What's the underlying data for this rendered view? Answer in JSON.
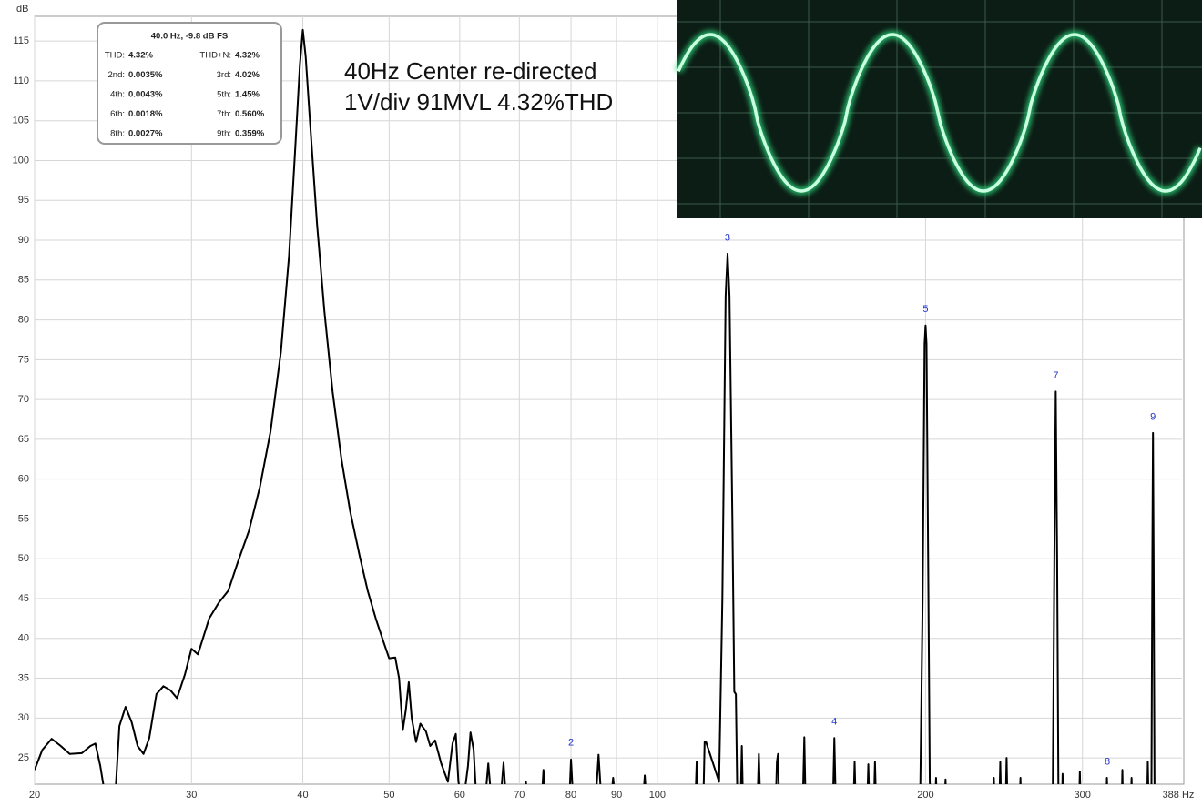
{
  "chart_data": {
    "type": "line",
    "y_label": "dB",
    "xlim": [
      20,
      388
    ],
    "ylim": [
      21.7,
      118.1
    ],
    "log_x": true,
    "grid": true,
    "xticks": [
      20,
      30,
      40,
      50,
      60,
      70,
      80,
      90,
      100,
      200,
      300,
      {
        "value": 388,
        "label": "388 Hz"
      }
    ],
    "yticks": [
      25,
      30,
      35,
      40,
      45,
      50,
      55,
      60,
      65,
      70,
      75,
      80,
      85,
      90,
      95,
      100,
      105,
      110,
      115
    ],
    "x": [
      20,
      20.4,
      20.9,
      21.4,
      21.9,
      22.6,
      23.1,
      23.4,
      23.7,
      24.1,
      24.6,
      24.9,
      25.3,
      25.7,
      26.1,
      26.5,
      26.9,
      27.4,
      27.9,
      28.4,
      28.9,
      29.5,
      30,
      30.5,
      30.8,
      31.4,
      32.2,
      33,
      33.8,
      34.8,
      35.8,
      36.8,
      37.8,
      38.6,
      39.2,
      39.7,
      40,
      40.3,
      40.8,
      41.5,
      42.3,
      43.2,
      44.2,
      45.2,
      46.3,
      47.3,
      48.3,
      49.3,
      50,
      50.8,
      51.3,
      51.8,
      52.2,
      52.6,
      53,
      53.6,
      54.2,
      55,
      55.6,
      56.3,
      57.2,
      58.2,
      58.9,
      59.4,
      59.8,
      60.5,
      61.3,
      61.7,
      62.2,
      62.7,
      64,
      64.6,
      65.2,
      66.6,
      67.2,
      67.7,
      70.8,
      71.2,
      71.6,
      74.1,
      74.5,
      74.9,
      79.6,
      80,
      80.5,
      85.2,
      85.9,
      86.6,
      88.6,
      89.2,
      89.8,
      96.3,
      96.8,
      97.3,
      110.3,
      110.7,
      111.1,
      112.6,
      113,
      113.4,
      117.3,
      118.3,
      119.3,
      119.9,
      120.5,
      121.4,
      122,
      122.5,
      123,
      124,
      124.4,
      124.8,
      129.5,
      130,
      130.5,
      135.8,
      136.2,
      136.6,
      137,
      145.6,
      146.2,
      146.7,
      157.4,
      158,
      158.6,
      166,
      166.5,
      167,
      172,
      172.5,
      173,
      175,
      175.5,
      176,
      186,
      186.8,
      197.2,
      198.5,
      199.5,
      200,
      200.5,
      201.5,
      202.2,
      202.8,
      205,
      205.5,
      206,
      210,
      210.6,
      211,
      238,
      238.6,
      239.2,
      242,
      242.6,
      243.2,
      246,
      246.6,
      247.2,
      255,
      255.6,
      256,
      277.8,
      279,
      280,
      281,
      282,
      284.5,
      285,
      285.5,
      297.4,
      298,
      298.6,
      319,
      319.6,
      320.2,
      332,
      332.6,
      333.2,
      340,
      340.6,
      341.2,
      354.5,
      355.2,
      356,
      358.5,
      359.4,
      360,
      360.6,
      361.5,
      388
    ],
    "series": [
      {
        "name": "Spectrum",
        "color": "#000000",
        "values": [
          23.5,
          26,
          27.4,
          26.5,
          25.5,
          25.6,
          26.5,
          26.8,
          24,
          19,
          19,
          29,
          31.4,
          29.5,
          26.5,
          25.5,
          27.5,
          33,
          34,
          33.5,
          32.5,
          35.5,
          38.7,
          38,
          39.5,
          42.5,
          44.5,
          46,
          49.5,
          53.5,
          59,
          66,
          76,
          88,
          101,
          112,
          116.4,
          113,
          104,
          92,
          81,
          71,
          62.5,
          56,
          50.5,
          46,
          42.5,
          39.5,
          37.5,
          37.6,
          35,
          28.5,
          31,
          34.5,
          30,
          27,
          29.3,
          28.3,
          26.5,
          27.2,
          24.3,
          22,
          26.8,
          28,
          22,
          19,
          24,
          28.2,
          26,
          19,
          19,
          24.3,
          19,
          19,
          24.4,
          19,
          19,
          22,
          19,
          19,
          23.5,
          19,
          19,
          24.8,
          19,
          19,
          25.4,
          19,
          19,
          22.5,
          19,
          19,
          22.8,
          19,
          19,
          24.5,
          19,
          19,
          27,
          27,
          22,
          45,
          83,
          88.3,
          83,
          55,
          33.3,
          33,
          19,
          19,
          26.5,
          19,
          19,
          25.5,
          19,
          19,
          24.5,
          25.5,
          19,
          19,
          27.6,
          19,
          19,
          27.5,
          19,
          19,
          24.5,
          19,
          19,
          24.2,
          19,
          19,
          24.5,
          19,
          19,
          21,
          19,
          45,
          77,
          79.3,
          77,
          45,
          22,
          19,
          19,
          22.5,
          19,
          19,
          22.3,
          19,
          19,
          22.5,
          19,
          19,
          24.5,
          19,
          19,
          25,
          19,
          19,
          22.5,
          19,
          19,
          50,
          71,
          50,
          19,
          19,
          23,
          19,
          19,
          23.3,
          19,
          19,
          22.5,
          19,
          19,
          23.5,
          19,
          19,
          22.5,
          19,
          19,
          24.5,
          19,
          19,
          50,
          65.8,
          50,
          19,
          19
        ]
      }
    ],
    "harmonic_labels": [
      {
        "text": "2",
        "x": 80,
        "y": 25.3
      },
      {
        "text": "3",
        "x": 119.9,
        "y": 88.7
      },
      {
        "text": "4",
        "x": 158,
        "y": 27.9
      },
      {
        "text": "5",
        "x": 200,
        "y": 79.7
      },
      {
        "text": "7",
        "x": 280,
        "y": 71.4
      },
      {
        "text": "8",
        "x": 320,
        "y": 22.9
      },
      {
        "text": "9",
        "x": 360,
        "y": 66.2
      }
    ],
    "notes": [
      "40Hz Center re-directed",
      "1V/div 91MVL 4.32%THD"
    ],
    "thd_box": {
      "title": "40.0 Hz, -9.8 dB FS",
      "rows": [
        [
          "THD:",
          "4.32%",
          "THD+N:",
          "4.32%"
        ],
        [
          "2nd:",
          "0.0035%",
          "3rd:",
          "4.02%"
        ],
        [
          "4th:",
          "0.0043%",
          "5th:",
          "1.45%"
        ],
        [
          "6th:",
          "0.0018%",
          "7th:",
          "0.560%"
        ],
        [
          "8th:",
          "0.0027%",
          "9th:",
          "0.359%"
        ]
      ]
    }
  }
}
